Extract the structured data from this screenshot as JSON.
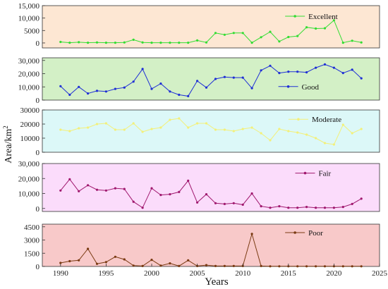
{
  "chart_data": {
    "type": "line",
    "xlabel": "Years",
    "ylabel": "Area/km",
    "ylabel_superscript": "2",
    "xlim": [
      1988,
      2025
    ],
    "xticks": [
      1990,
      1995,
      2000,
      2005,
      2010,
      2015,
      2020,
      2025
    ],
    "years": [
      1990,
      1991,
      1992,
      1993,
      1994,
      1995,
      1996,
      1997,
      1998,
      1999,
      2000,
      2001,
      2002,
      2003,
      2004,
      2005,
      2006,
      2007,
      2008,
      2009,
      2010,
      2011,
      2012,
      2013,
      2014,
      2015,
      2016,
      2017,
      2018,
      2019,
      2020,
      2021,
      2022,
      2023
    ],
    "panels": [
      {
        "name": "Excellent",
        "color": "#33dd33",
        "bg": "#fde7d3",
        "ylim": [
          -2000,
          15000
        ],
        "yticks": [
          0,
          5000,
          10000,
          15000
        ],
        "ytick_labels": [
          "0",
          "5000",
          "10,000",
          "15,000"
        ],
        "values": [
          400,
          100,
          300,
          100,
          200,
          100,
          100,
          200,
          1300,
          200,
          100,
          100,
          100,
          100,
          100,
          1000,
          200,
          4000,
          3300,
          4000,
          4000,
          100,
          2300,
          4500,
          600,
          2400,
          2800,
          6300,
          5800,
          5900,
          9100,
          100,
          900,
          200
        ]
      },
      {
        "name": "Good",
        "color": "#1f2fd6",
        "bg": "#d3f0c6",
        "ylim": [
          0,
          32000
        ],
        "yticks": [
          0,
          10000,
          20000,
          30000
        ],
        "ytick_labels": [
          "0",
          "10,000",
          "20,000",
          "30,000"
        ],
        "values": [
          10500,
          4000,
          10000,
          5000,
          7000,
          6500,
          8500,
          9500,
          14000,
          23500,
          8500,
          12500,
          6500,
          4000,
          3000,
          14500,
          9500,
          16000,
          17500,
          17000,
          17000,
          9000,
          22500,
          26000,
          20500,
          21500,
          21500,
          21000,
          24500,
          27000,
          24500,
          20500,
          23000,
          16500
        ]
      },
      {
        "name": "Moderate",
        "color": "#f3f07a",
        "bg": "#dcf8f8",
        "ylim": [
          0,
          30000
        ],
        "yticks": [
          0,
          10000,
          20000,
          30000
        ],
        "ytick_labels": [
          "0",
          "10000",
          "20000",
          "30000"
        ],
        "values": [
          16000,
          15000,
          17000,
          17500,
          20000,
          20500,
          16000,
          16000,
          20500,
          14500,
          16500,
          17500,
          23000,
          24000,
          17500,
          20500,
          20500,
          16000,
          16000,
          15000,
          16500,
          17500,
          13500,
          8500,
          16500,
          15000,
          14000,
          12500,
          10000,
          6500,
          5500,
          19500,
          13500,
          16500
        ]
      },
      {
        "name": "Fair",
        "color": "#a0186e",
        "bg": "#fbdcfb",
        "ylim": [
          -2000,
          30000
        ],
        "yticks": [
          0,
          10000,
          20000,
          30000
        ],
        "ytick_labels": [
          "0",
          "10,000",
          "20,000",
          "30,000"
        ],
        "values": [
          12000,
          19500,
          11500,
          15500,
          12500,
          12000,
          13500,
          13000,
          4500,
          500,
          13500,
          9000,
          9500,
          11000,
          18500,
          4000,
          9500,
          3500,
          3000,
          3500,
          2500,
          10000,
          1500,
          500,
          1500,
          500,
          500,
          1000,
          500,
          500,
          500,
          1000,
          3000,
          6500
        ]
      },
      {
        "name": "Poor",
        "color": "#7a3a12",
        "bg": "#f8c9c9",
        "ylim": [
          0,
          4800
        ],
        "yticks": [
          0,
          1500,
          3000,
          4500
        ],
        "ytick_labels": [
          "0",
          "1500",
          "3000",
          "4500"
        ],
        "values": [
          400,
          600,
          700,
          2000,
          300,
          500,
          1100,
          800,
          100,
          50,
          750,
          100,
          350,
          50,
          700,
          50,
          150,
          50,
          50,
          50,
          50,
          3700,
          50,
          20,
          20,
          20,
          20,
          20,
          20,
          20,
          20,
          20,
          20,
          20
        ]
      }
    ]
  }
}
